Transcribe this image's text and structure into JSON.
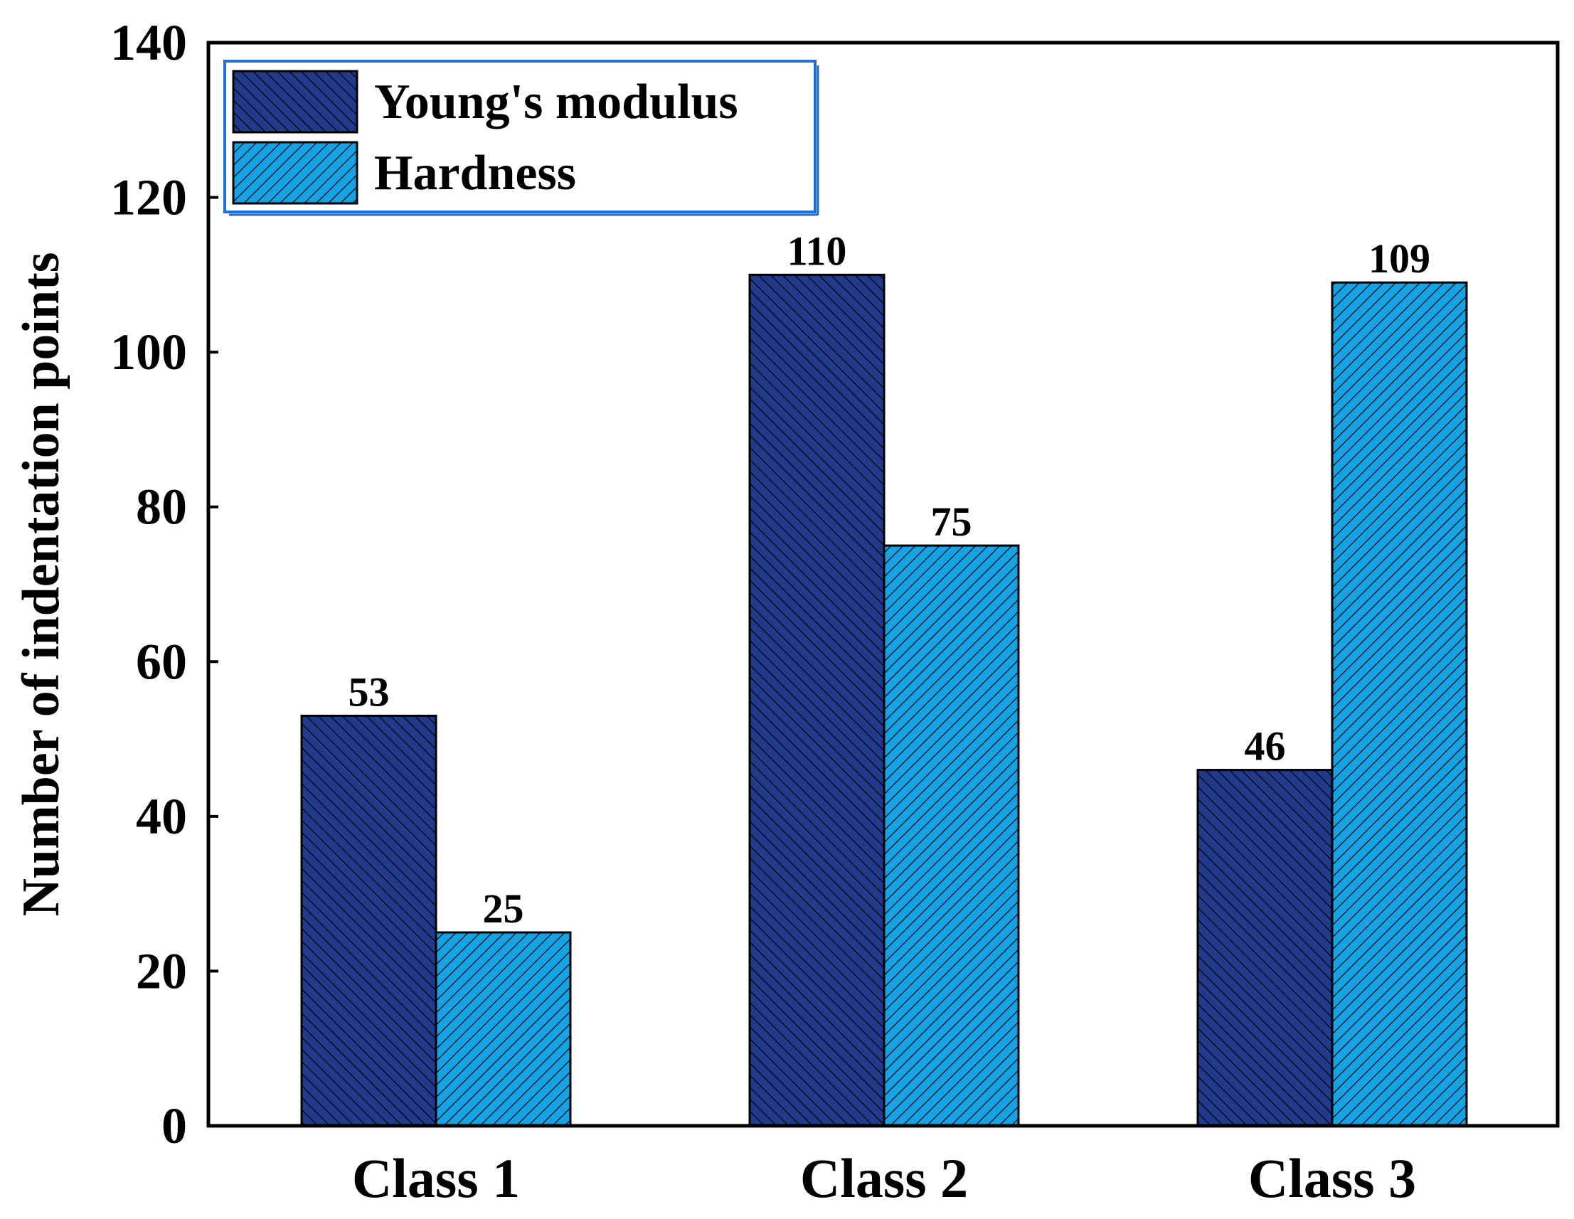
{
  "chart_data": {
    "type": "bar",
    "title": "",
    "xlabel": "",
    "ylabel": "Number of indentation points",
    "categories": [
      "Class 1",
      "Class 2",
      "Class 3"
    ],
    "series": [
      {
        "name": "Young's modulus",
        "values": [
          53,
          110,
          46
        ],
        "color": "#223a8c",
        "hatch": "backslash"
      },
      {
        "name": "Hardness",
        "values": [
          25,
          75,
          109
        ],
        "color": "#16a3e6",
        "hatch": "slash"
      }
    ],
    "ylim": [
      0,
      140
    ],
    "yticks": [
      0,
      20,
      40,
      60,
      80,
      100,
      120,
      140
    ],
    "grid": false,
    "legend": "top-left",
    "legend_border_color": "#1e6fd6"
  }
}
